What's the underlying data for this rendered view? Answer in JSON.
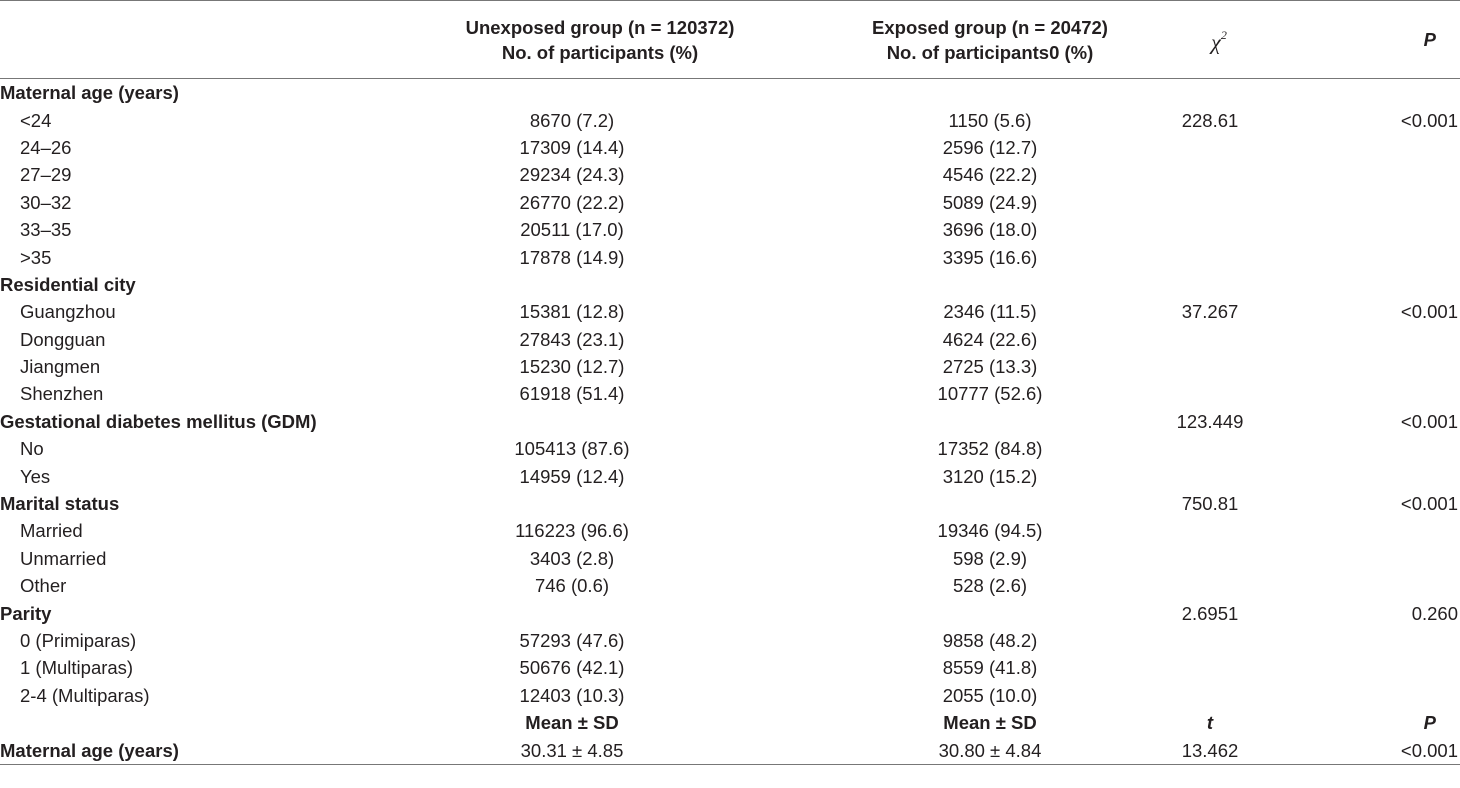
{
  "header": {
    "col1_line1": "Unexposed group (n = 120372)",
    "col1_line2": "No. of participants (%)",
    "col2_line1": "Exposed group (n = 20472)",
    "col2_line2": "No. of participants0 (%)",
    "col3_symbol": "χ",
    "col3_sup": "2",
    "col4": "P"
  },
  "sections": [
    {
      "title": "Maternal age (years)",
      "stat": "",
      "p": "",
      "rows": [
        {
          "label": "<24",
          "unexposed": "8670 (7.2)",
          "exposed": "1150 (5.6)",
          "stat": "228.61",
          "p": "<0.001"
        },
        {
          "label": "24–26",
          "unexposed": "17309 (14.4)",
          "exposed": "2596 (12.7)",
          "stat": "",
          "p": ""
        },
        {
          "label": "27–29",
          "unexposed": "29234 (24.3)",
          "exposed": "4546 (22.2)",
          "stat": "",
          "p": ""
        },
        {
          "label": "30–32",
          "unexposed": "26770 (22.2)",
          "exposed": "5089 (24.9)",
          "stat": "",
          "p": ""
        },
        {
          "label": "33–35",
          "unexposed": "20511 (17.0)",
          "exposed": "3696 (18.0)",
          "stat": "",
          "p": ""
        },
        {
          "label": ">35",
          "unexposed": "17878 (14.9)",
          "exposed": "3395 (16.6)",
          "stat": "",
          "p": ""
        }
      ]
    },
    {
      "title": "Residential city",
      "stat": "",
      "p": "",
      "rows": [
        {
          "label": "Guangzhou",
          "unexposed": "15381 (12.8)",
          "exposed": "2346 (11.5)",
          "stat": "37.267",
          "p": "<0.001"
        },
        {
          "label": "Dongguan",
          "unexposed": "27843 (23.1)",
          "exposed": "4624 (22.6)",
          "stat": "",
          "p": ""
        },
        {
          "label": "Jiangmen",
          "unexposed": "15230 (12.7)",
          "exposed": "2725 (13.3)",
          "stat": "",
          "p": ""
        },
        {
          "label": "Shenzhen",
          "unexposed": "61918 (51.4)",
          "exposed": "10777 (52.6)",
          "stat": "",
          "p": ""
        }
      ]
    },
    {
      "title": "Gestational diabetes mellitus (GDM)",
      "stat": "123.449",
      "p": "<0.001",
      "rows": [
        {
          "label": "No",
          "unexposed": "105413 (87.6)",
          "exposed": "17352 (84.8)",
          "stat": "",
          "p": ""
        },
        {
          "label": "Yes",
          "unexposed": "14959 (12.4)",
          "exposed": "3120 (15.2)",
          "stat": "",
          "p": ""
        }
      ]
    },
    {
      "title": "Marital status",
      "stat": "750.81",
      "p": "<0.001",
      "rows": [
        {
          "label": "Married",
          "unexposed": "116223 (96.6)",
          "exposed": "19346 (94.5)",
          "stat": "",
          "p": ""
        },
        {
          "label": "Unmarried",
          "unexposed": "3403 (2.8)",
          "exposed": "598 (2.9)",
          "stat": "",
          "p": ""
        },
        {
          "label": "Other",
          "unexposed": "746 (0.6)",
          "exposed": "528 (2.6)",
          "stat": "",
          "p": ""
        }
      ]
    },
    {
      "title": "Parity",
      "stat": "2.6951",
      "p": "0.260",
      "rows": [
        {
          "label": "0 (Primiparas)",
          "unexposed": "57293 (47.6)",
          "exposed": "9858 (48.2)",
          "stat": "",
          "p": ""
        },
        {
          "label": "1 (Multiparas)",
          "unexposed": "50676 (42.1)",
          "exposed": "8559 (41.8)",
          "stat": "",
          "p": ""
        },
        {
          "label": "2-4 (Multiparas)",
          "unexposed": "12403 (10.3)",
          "exposed": "2055 (10.0)",
          "stat": "",
          "p": ""
        }
      ]
    }
  ],
  "mean_header": {
    "unexposed": "Mean ± SD",
    "exposed": "Mean ± SD",
    "stat": "t",
    "p": "P"
  },
  "mean_row": {
    "label": "Maternal age (years)",
    "unexposed": "30.31 ± 4.85",
    "exposed": "30.80 ± 4.84",
    "stat": "13.462",
    "p": "<0.001"
  }
}
